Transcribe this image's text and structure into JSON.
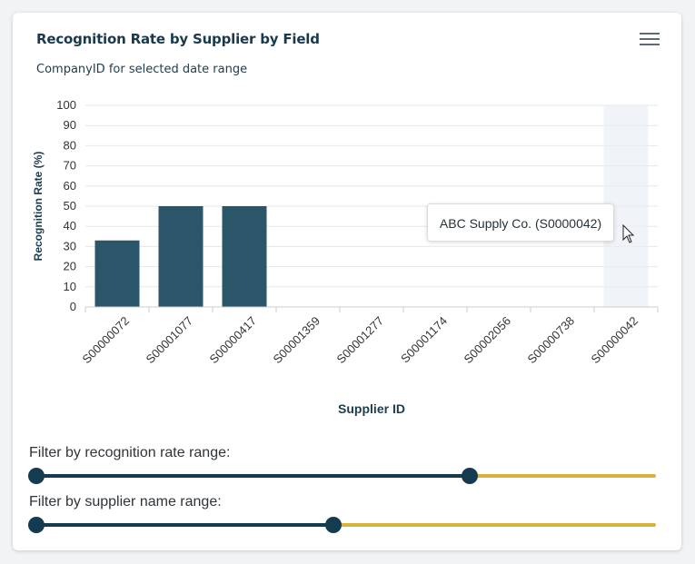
{
  "card": {
    "title": "Recognition Rate by Supplier by Field",
    "subtitle": "CompanyID for selected date range",
    "menu_icon": "hamburger-menu-icon"
  },
  "chart_data": {
    "type": "bar",
    "title": "Recognition Rate by Supplier by Field",
    "subtitle": "CompanyID for selected date range",
    "xlabel": "Supplier ID",
    "ylabel": "Recognition Rate (%)",
    "ylim": [
      0,
      100
    ],
    "yticks": [
      0,
      10,
      20,
      30,
      40,
      50,
      60,
      70,
      80,
      90,
      100
    ],
    "grid": true,
    "categories": [
      "S00000072",
      "S00001077",
      "S00000417",
      "S00001359",
      "S00001277",
      "S00001174",
      "S00002056",
      "S00000738",
      "S00000042"
    ],
    "values": [
      33,
      50,
      50,
      0,
      0,
      0,
      0,
      0,
      0
    ],
    "bar_color": "#2b5568",
    "highlighted_category": "S00000042"
  },
  "tooltip": {
    "text": "ABC Supply Co. (S0000042)"
  },
  "filters": {
    "recognition": {
      "label": "Filter by recognition rate range:",
      "low": 0,
      "high": 0.7
    },
    "supplier": {
      "label": "Filter by supplier name range:",
      "low": 0,
      "high": 0.48
    }
  },
  "colors": {
    "primary": "#143b4f",
    "accent": "#d5b23a",
    "text": "#183a4c"
  }
}
